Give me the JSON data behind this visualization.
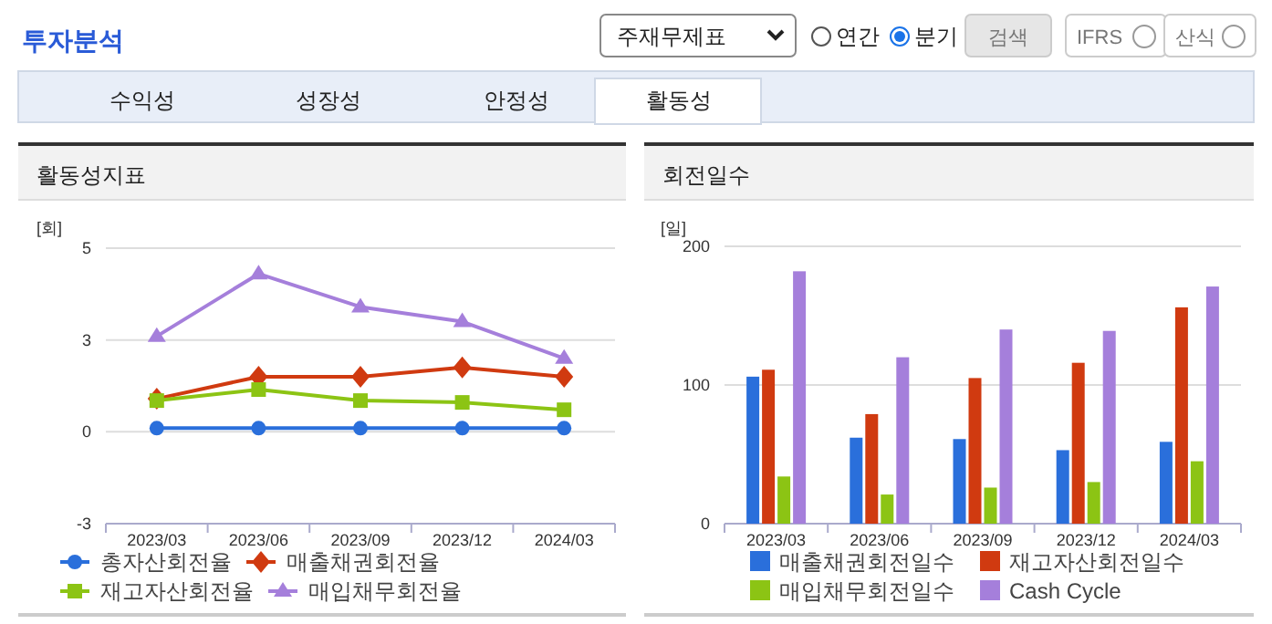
{
  "chart_data": [
    {
      "type": "other",
      "title": "투자분석",
      "annotations": [
        "주재무제표",
        "연간",
        "분기",
        "검색",
        "IFRS",
        "산식",
        "수익성",
        "성장성",
        "안정성",
        "활동성"
      ]
    },
    {
      "type": "line",
      "title": "활동성지표",
      "ylabel": "[회]",
      "categories": [
        "2023/03",
        "2023/06",
        "2023/09",
        "2023/12",
        "2024/03"
      ],
      "ylim": [
        -2.5,
        5
      ],
      "yticks": [
        {
          "value": -2.5,
          "label": "-3"
        },
        0,
        {
          "value": 2.5,
          "label": "3"
        },
        5
      ],
      "grid": "y",
      "legend": "bottom",
      "series": [
        {
          "name": "총자산회전율",
          "color": "#2a6fdb",
          "marker": "circle",
          "values": [
            0.1,
            0.1,
            0.1,
            0.1,
            0.1
          ]
        },
        {
          "name": "매출채권회전율",
          "color": "#d03a10",
          "marker": "diamond",
          "values": [
            0.9,
            1.5,
            1.5,
            1.75,
            1.5
          ]
        },
        {
          "name": "재고자산회전율",
          "color": "#8cc414",
          "marker": "square",
          "values": [
            0.85,
            1.15,
            0.85,
            0.8,
            0.6
          ]
        },
        {
          "name": "매입채무회전율",
          "color": "#a57fdb",
          "marker": "triangle",
          "values": [
            2.6,
            4.3,
            3.4,
            3.0,
            2.0
          ]
        }
      ]
    },
    {
      "type": "bar",
      "title": "회전일수",
      "ylabel": "[일]",
      "categories": [
        "2023/03",
        "2023/06",
        "2023/09",
        "2023/12",
        "2024/03"
      ],
      "ylim": [
        0,
        200
      ],
      "yticks": [
        0,
        100,
        200
      ],
      "grid": "y",
      "legend": "bottom",
      "series": [
        {
          "name": "매출채권회전일수",
          "color": "#2a6fdb",
          "values": [
            106,
            62,
            61,
            53,
            59
          ]
        },
        {
          "name": "재고자산회전일수",
          "color": "#d03a10",
          "values": [
            111,
            79,
            105,
            116,
            156
          ]
        },
        {
          "name": "매입채무회전일수",
          "color": "#8cc414",
          "values": [
            34,
            21,
            26,
            30,
            45
          ]
        },
        {
          "name": "Cash Cycle",
          "color": "#a57fdb",
          "values": [
            182,
            120,
            140,
            139,
            171
          ]
        }
      ]
    }
  ]
}
